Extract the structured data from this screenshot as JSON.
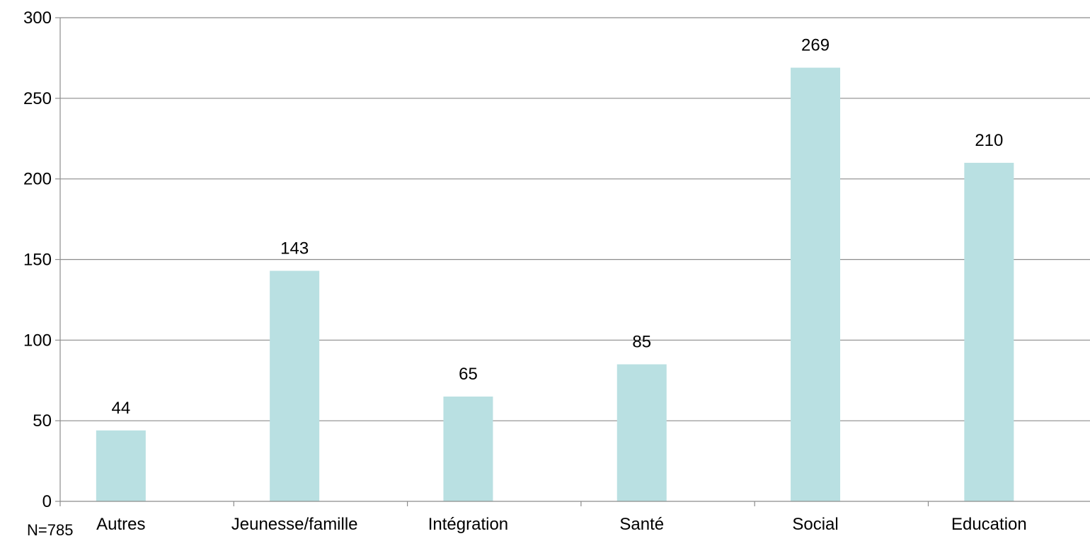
{
  "chart_data": {
    "type": "bar",
    "categories": [
      "Autres",
      "Jeunesse/famille",
      "Intégration",
      "Santé",
      "Social",
      "Education"
    ],
    "values": [
      44,
      143,
      65,
      85,
      269,
      210
    ],
    "ylim": [
      0,
      300
    ],
    "yticks": [
      "0",
      "50",
      "100",
      "150",
      "200",
      "250",
      "300"
    ],
    "grid": true,
    "legend": "none",
    "bar_color": "#b9e0e2",
    "data_labels": [
      "44",
      "143",
      "65",
      "85",
      "269",
      "210"
    ]
  },
  "note": "N=785"
}
